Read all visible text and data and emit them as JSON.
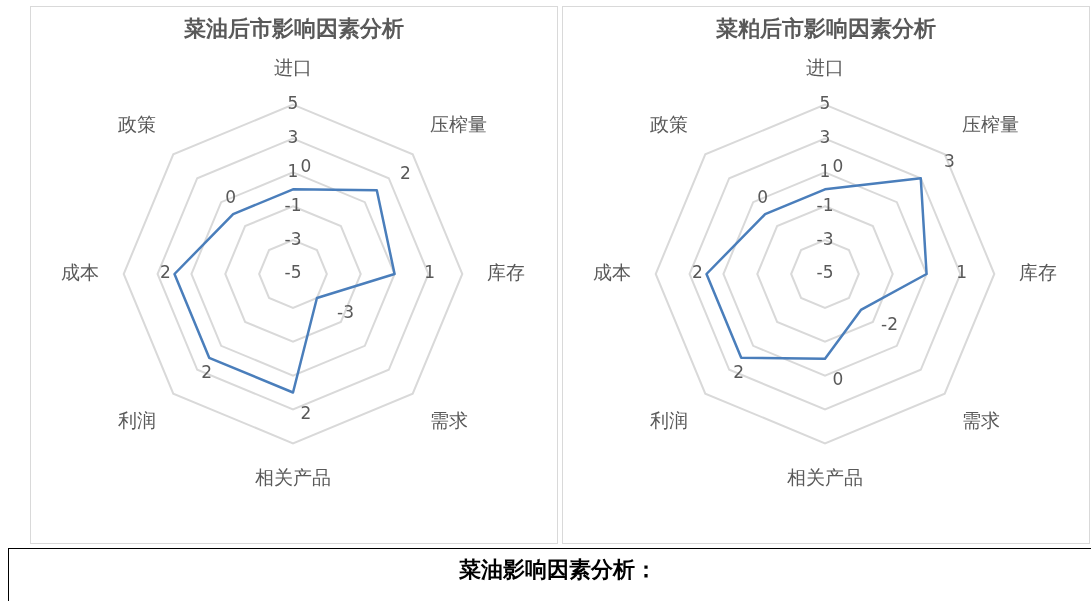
{
  "chart_data": [
    {
      "type": "radar",
      "title": "菜油后市影响因素分析",
      "categories": [
        "进口",
        "压榨量",
        "库存",
        "需求",
        "相关产品",
        "利润",
        "成本",
        "政策"
      ],
      "series": [
        {
          "color": "#4a7ebb",
          "values": [
            0,
            2,
            1,
            -3,
            2,
            2,
            2,
            0
          ]
        }
      ],
      "ylim": [
        -5,
        5
      ],
      "yticks": [
        -5,
        -3,
        -1,
        1,
        3,
        5
      ],
      "grid": true,
      "legend": false,
      "marker": "none",
      "data_labels": true
    },
    {
      "type": "radar",
      "title": "菜粕后市影响因素分析",
      "categories": [
        "进口",
        "压榨量",
        "库存",
        "需求",
        "相关产品",
        "利润",
        "成本",
        "政策"
      ],
      "series": [
        {
          "color": "#4a7ebb",
          "values": [
            0,
            3,
            1,
            -2,
            0,
            2,
            2,
            0
          ]
        }
      ],
      "ylim": [
        -5,
        5
      ],
      "yticks": [
        -5,
        -3,
        -1,
        1,
        3,
        5
      ],
      "grid": true,
      "legend": false,
      "marker": "none",
      "data_labels": true
    },
    {
      "type": "other",
      "title": "菜油影响因素分析："
    }
  ]
}
